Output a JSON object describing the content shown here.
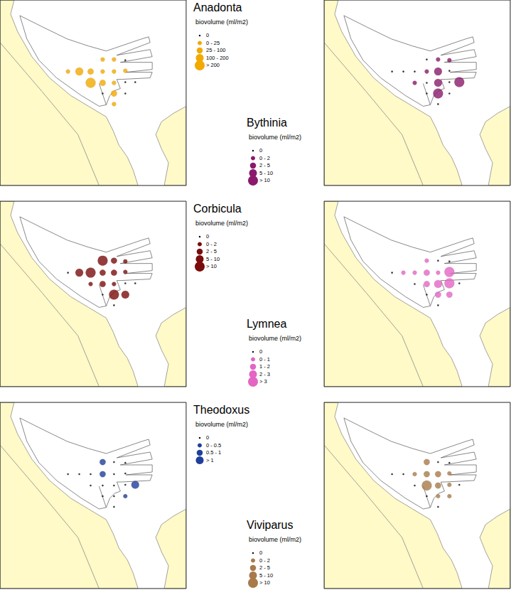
{
  "chart_data": [
    {
      "type": "scatter",
      "title": "Anadonta",
      "subtitle": "biovolume (ml/m2)",
      "color": "#f2a900",
      "x": [
        145,
        161,
        177,
        96,
        112,
        128,
        145,
        161,
        177,
        128,
        145,
        161,
        177,
        145,
        161,
        177,
        161,
        191
      ],
      "y": [
        84,
        84,
        85,
        101,
        101,
        101,
        101,
        101,
        100,
        117,
        117,
        117,
        116,
        132,
        132,
        132,
        147,
        116
      ],
      "values": [
        10,
        15,
        0,
        20,
        150,
        30,
        15,
        12,
        10,
        250,
        60,
        10,
        0,
        0,
        40,
        0,
        15,
        0
      ],
      "size_classes": [
        {
          "label": "0",
          "lower": 0,
          "upper": 0
        },
        {
          "label": "0 - 25",
          "lower": 0,
          "upper": 25
        },
        {
          "label": "25 - 100",
          "lower": 25,
          "upper": 100
        },
        {
          "label": "100 - 200",
          "lower": 100,
          "upper": 200
        },
        {
          "label": "> 200",
          "lower": 200
        }
      ],
      "xlim": [
        0,
        263
      ],
      "ylim": [
        0,
        262
      ],
      "tick_labels": false
    },
    {
      "type": "scatter",
      "title": "Bythinia",
      "subtitle": "biovolume (ml/m2)",
      "color": "#8a1a6c",
      "x": [
        145,
        161,
        177,
        96,
        112,
        128,
        145,
        161,
        177,
        128,
        145,
        161,
        177,
        145,
        161,
        177,
        161,
        191
      ],
      "y": [
        84,
        84,
        85,
        101,
        101,
        101,
        101,
        101,
        100,
        117,
        117,
        117,
        116,
        132,
        132,
        132,
        147,
        116
      ],
      "values": [
        0,
        1,
        1.5,
        0,
        0,
        0,
        1,
        7,
        0,
        1.5,
        0,
        6,
        0,
        0,
        12,
        0,
        0,
        12
      ],
      "size_classes": [
        {
          "label": "0",
          "lower": 0,
          "upper": 0
        },
        {
          "label": "0 - 2",
          "lower": 0,
          "upper": 2
        },
        {
          "label": "2 - 5",
          "lower": 2,
          "upper": 5
        },
        {
          "label": "5 - 10",
          "lower": 5,
          "upper": 10
        },
        {
          "label": "> 10",
          "lower": 10
        }
      ],
      "xlim": [
        0,
        263
      ],
      "ylim": [
        0,
        262
      ],
      "tick_labels": false
    },
    {
      "type": "scatter",
      "title": "Corbicula",
      "subtitle": "biovolume (ml/m2)",
      "color": "#7a0c0c",
      "x": [
        145,
        161,
        177,
        96,
        112,
        128,
        145,
        161,
        177,
        128,
        145,
        161,
        177,
        145,
        161,
        177,
        161,
        191
      ],
      "y": [
        84,
        84,
        85,
        101,
        101,
        101,
        101,
        101,
        100,
        117,
        117,
        117,
        116,
        132,
        132,
        132,
        147,
        116
      ],
      "values": [
        12,
        4,
        1,
        0,
        8,
        12,
        4,
        3,
        1,
        1.5,
        4,
        1,
        0,
        0,
        12,
        6,
        0,
        0
      ],
      "size_classes": [
        {
          "label": "0",
          "lower": 0,
          "upper": 0
        },
        {
          "label": "0 - 2",
          "lower": 0,
          "upper": 2
        },
        {
          "label": "2 - 5",
          "lower": 2,
          "upper": 5
        },
        {
          "label": "5 - 10",
          "lower": 5,
          "upper": 10
        },
        {
          "label": "> 10",
          "lower": 10
        }
      ],
      "xlim": [
        0,
        263
      ],
      "ylim": [
        0,
        262
      ],
      "tick_labels": false
    },
    {
      "type": "scatter",
      "title": "Lymnea",
      "subtitle": "biovolume (ml/m2)",
      "color": "#e465c4",
      "x": [
        145,
        161,
        177,
        96,
        112,
        128,
        145,
        161,
        177,
        128,
        145,
        161,
        177,
        145,
        161,
        177,
        161,
        191
      ],
      "y": [
        84,
        84,
        85,
        101,
        101,
        101,
        101,
        101,
        100,
        117,
        117,
        117,
        116,
        132,
        132,
        132,
        147,
        116
      ],
      "values": [
        0.5,
        0,
        0,
        0,
        0.5,
        0.8,
        1.5,
        0.5,
        4,
        0,
        1.5,
        2.5,
        4,
        0,
        1.5,
        1.5,
        0,
        0
      ],
      "size_classes": [
        {
          "label": "0",
          "lower": 0,
          "upper": 0
        },
        {
          "label": "0 - 1",
          "lower": 0,
          "upper": 1
        },
        {
          "label": "1 - 2",
          "lower": 1,
          "upper": 2
        },
        {
          "label": "2 - 3",
          "lower": 2,
          "upper": 3
        },
        {
          "label": "> 3",
          "lower": 3
        }
      ],
      "xlim": [
        0,
        263
      ],
      "ylim": [
        0,
        262
      ],
      "tick_labels": false
    },
    {
      "type": "scatter",
      "title": "Theodoxus",
      "subtitle": "biovolume (ml/m2)",
      "color": "#1f3f9a",
      "x": [
        145,
        161,
        177,
        96,
        112,
        128,
        145,
        161,
        177,
        128,
        145,
        161,
        177,
        145,
        161,
        177,
        161,
        191
      ],
      "y": [
        84,
        84,
        85,
        101,
        101,
        101,
        101,
        101,
        100,
        117,
        117,
        117,
        116,
        132,
        132,
        132,
        147,
        116
      ],
      "values": [
        0.8,
        0,
        0,
        0,
        0,
        0,
        0.8,
        0,
        0,
        0,
        0,
        0,
        0,
        0,
        0,
        0.3,
        0,
        1.5
      ],
      "size_classes": [
        {
          "label": "0",
          "lower": 0,
          "upper": 0
        },
        {
          "label": "0 - 0.5",
          "lower": 0,
          "upper": 0.5
        },
        {
          "label": "0.5 - 1",
          "lower": 0.5,
          "upper": 1
        },
        {
          "label": "> 1",
          "lower": 1
        }
      ],
      "xlim": [
        0,
        263
      ],
      "ylim": [
        0,
        262
      ],
      "tick_labels": false
    },
    {
      "type": "scatter",
      "title": "Viviparus",
      "subtitle": "biovolume (ml/m2)",
      "color": "#a87a4a",
      "x": [
        145,
        161,
        177,
        96,
        112,
        128,
        145,
        161,
        177,
        128,
        145,
        161,
        177,
        145,
        161,
        177,
        161,
        191
      ],
      "y": [
        84,
        84,
        85,
        101,
        101,
        101,
        101,
        101,
        100,
        117,
        117,
        117,
        116,
        132,
        132,
        132,
        147,
        116
      ],
      "values": [
        3,
        0,
        0,
        0,
        0,
        1.5,
        4,
        3,
        1,
        0,
        12,
        3,
        1,
        0,
        1,
        1,
        0,
        0
      ],
      "size_classes": [
        {
          "label": "0",
          "lower": 0,
          "upper": 0
        },
        {
          "label": "0 - 2",
          "lower": 0,
          "upper": 2
        },
        {
          "label": "2 - 5",
          "lower": 2,
          "upper": 5
        },
        {
          "label": "5 - 10",
          "lower": 5,
          "upper": 10
        },
        {
          "label": "> 10",
          "lower": 10
        }
      ],
      "xlim": [
        0,
        263
      ],
      "ylim": [
        0,
        262
      ],
      "tick_labels": false
    }
  ]
}
